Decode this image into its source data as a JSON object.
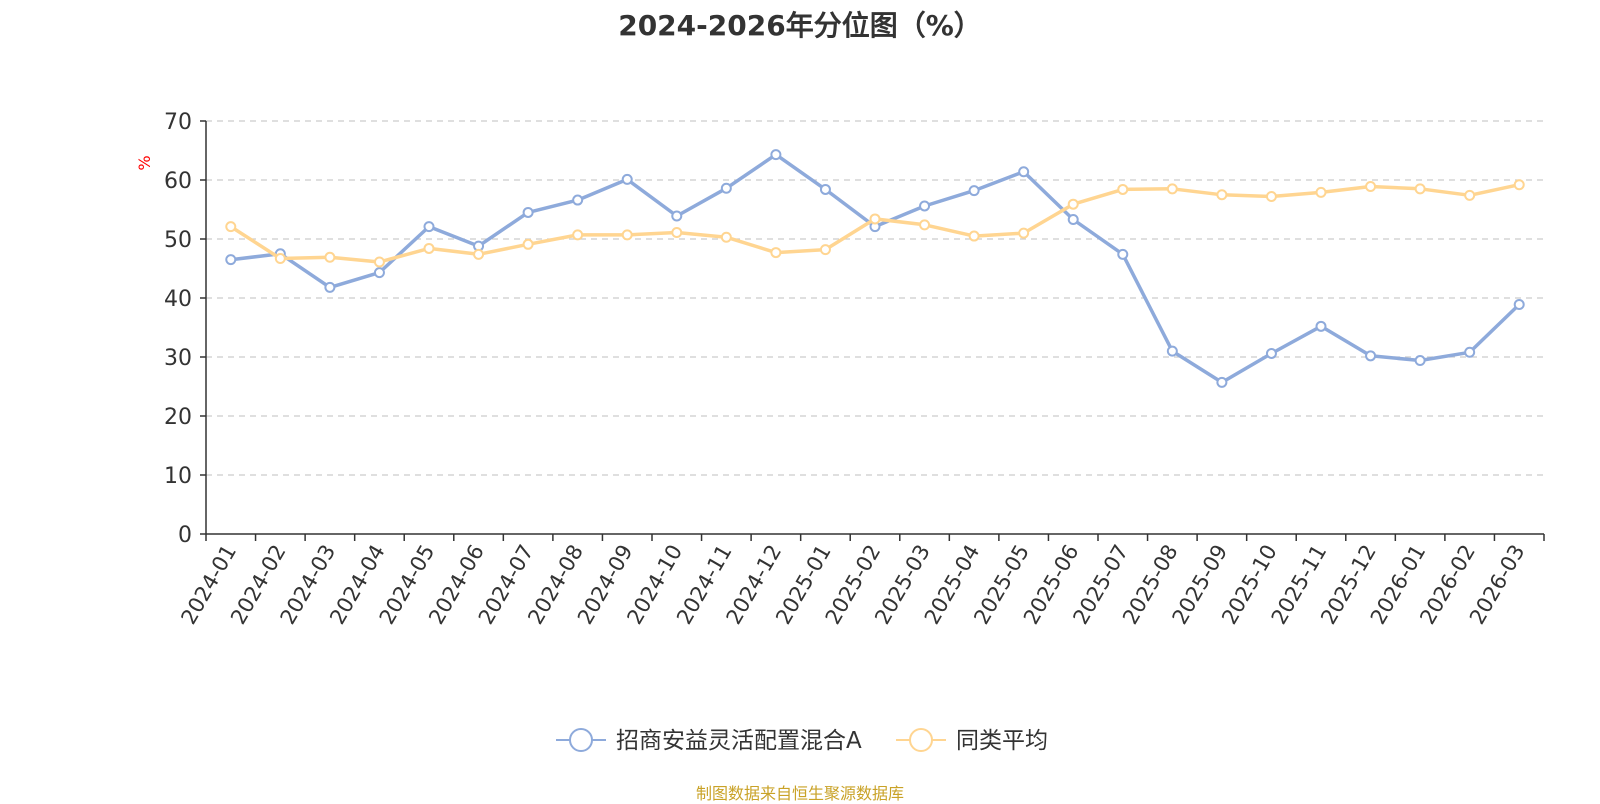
{
  "chart_data": {
    "type": "line",
    "title": "2024-2026年分位图（%）",
    "ylabel": "%",
    "xlabel": "",
    "ylim": [
      0,
      70
    ],
    "yticks": [
      0,
      10,
      20,
      30,
      40,
      50,
      60,
      70
    ],
    "grid": true,
    "legend_position": "bottom",
    "categories": [
      "2024-01",
      "2024-02",
      "2024-03",
      "2024-04",
      "2024-05",
      "2024-06",
      "2024-07",
      "2024-08",
      "2024-09",
      "2024-10",
      "2024-11",
      "2024-12",
      "2025-01",
      "2025-02",
      "2025-03",
      "2025-04",
      "2025-05",
      "2025-06",
      "2025-07",
      "2025-08",
      "2025-09",
      "2025-10",
      "2025-11",
      "2025-12",
      "2026-01",
      "2026-02",
      "2026-03"
    ],
    "series": [
      {
        "name": "招商安益灵活配置混合A",
        "color": "#8eaadb",
        "values": [
          46.5,
          47.5,
          41.8,
          44.3,
          52.1,
          48.8,
          54.5,
          56.6,
          60.1,
          53.9,
          58.6,
          64.3,
          58.4,
          52.1,
          55.6,
          58.2,
          61.4,
          53.3,
          47.4,
          31.0,
          25.7,
          30.6,
          35.2,
          30.2,
          29.4,
          30.8,
          38.9
        ]
      },
      {
        "name": "同类平均",
        "color": "#ffd591",
        "values": [
          52.1,
          46.7,
          46.9,
          46.1,
          48.4,
          47.4,
          49.1,
          50.7,
          50.7,
          51.1,
          50.3,
          47.7,
          48.2,
          53.4,
          52.4,
          50.5,
          51.0,
          55.9,
          58.4,
          58.5,
          57.5,
          57.2,
          57.9,
          58.9,
          58.5,
          57.4,
          59.2
        ]
      }
    ],
    "source": "制图数据来自恒生聚源数据库"
  }
}
